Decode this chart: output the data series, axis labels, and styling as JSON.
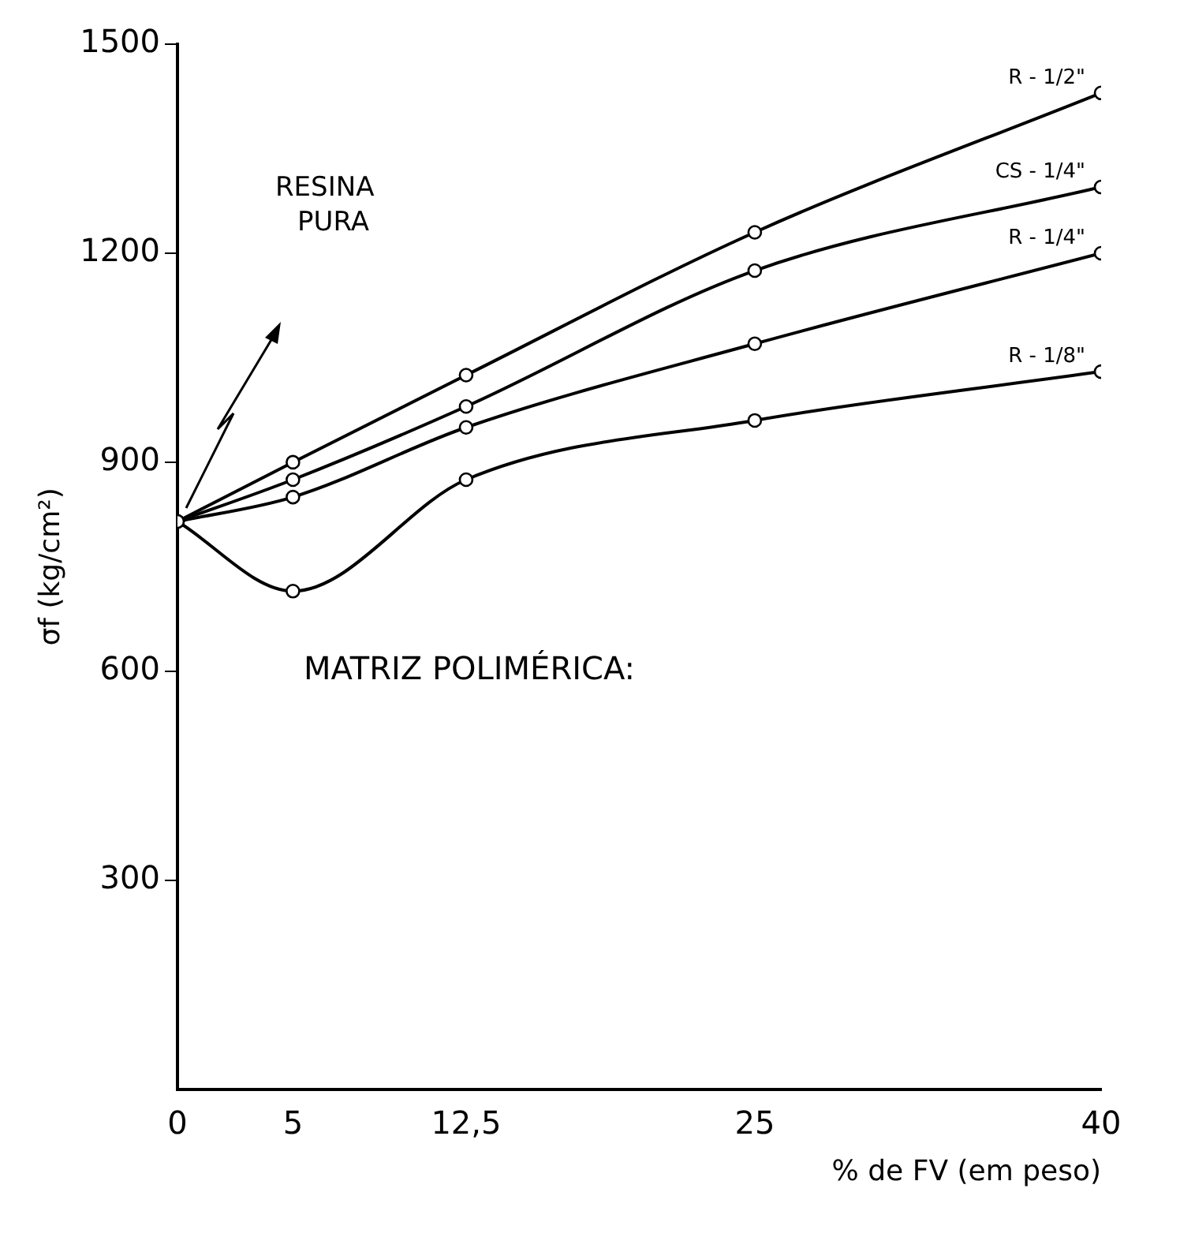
{
  "chart_data": {
    "type": "line",
    "ylabel": "σf (kg/cm²)",
    "xlabel": "% de FV (em peso)",
    "x": [
      0,
      5,
      12.5,
      25,
      40
    ],
    "xlim": [
      0,
      40
    ],
    "xticks": [
      0,
      5,
      {
        "value": 12.5,
        "label": "12,5"
      },
      25,
      40
    ],
    "ylim": [
      0,
      1500
    ],
    "yticks": [
      300,
      600,
      900,
      1200,
      1500
    ],
    "grid": false,
    "legend": false,
    "marker": "circle",
    "line_style": "solid",
    "series": [
      {
        "name": "R - 1/2\"",
        "color": "#000000",
        "values": [
          815,
          900,
          1025,
          1230,
          1430
        ]
      },
      {
        "name": "CS - 1/4\"",
        "color": "#000000",
        "values": [
          815,
          875,
          980,
          1175,
          1295
        ]
      },
      {
        "name": "R - 1/4\"",
        "color": "#000000",
        "values": [
          815,
          850,
          950,
          1070,
          1200
        ]
      },
      {
        "name": "R - 1/8\"",
        "color": "#000000",
        "values": [
          815,
          715,
          875,
          960,
          1030
        ]
      }
    ],
    "annotations": [
      "RESINA PURA",
      "MATRIZ POLIMÉRICA:"
    ]
  }
}
